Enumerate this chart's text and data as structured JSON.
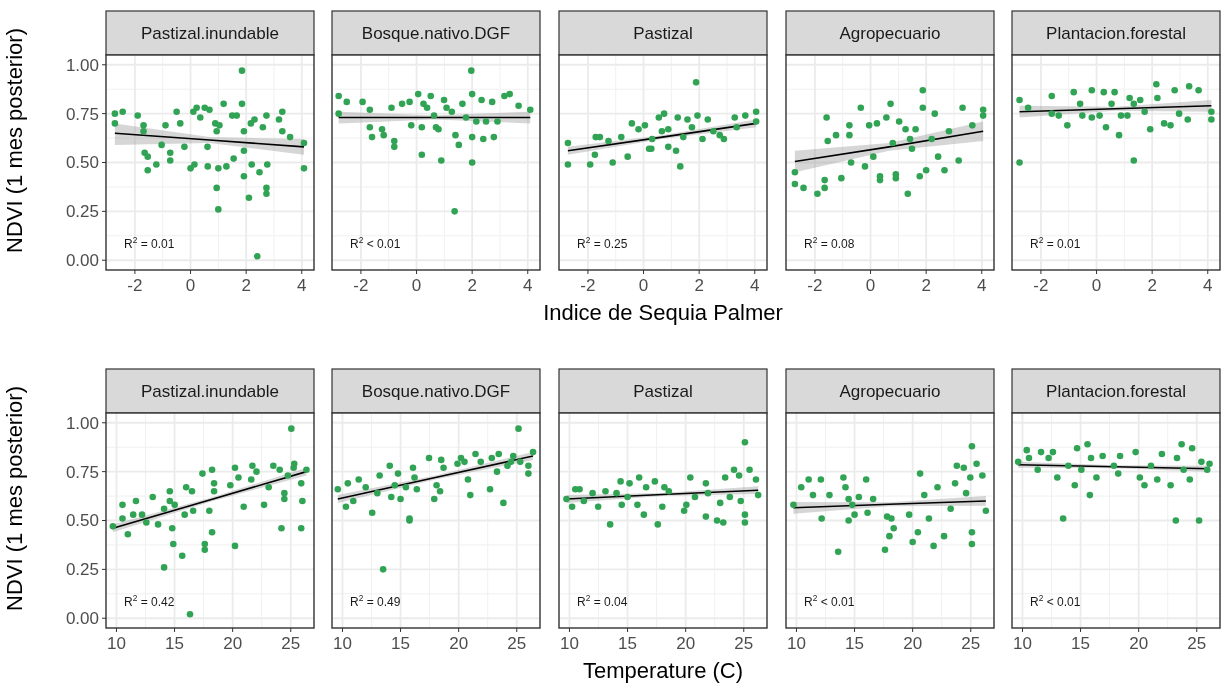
{
  "chart_data": [
    {
      "type": "scatter",
      "title": "Pastizal.inundable",
      "ylabel": "NDVI (1 mes posterior)",
      "xlim": [
        -3.04,
        4.44
      ],
      "xticks": [
        -2,
        0,
        2,
        4
      ],
      "ylim": [
        -0.05,
        1.05
      ],
      "yticks": [
        {
          "value": 0,
          "label": "0.00"
        },
        {
          "value": 0.25,
          "label": "0.25"
        },
        {
          "value": 0.5,
          "label": "0.50"
        },
        {
          "value": 0.75,
          "label": "0.75"
        },
        {
          "value": 1,
          "label": "1.00"
        }
      ],
      "grid": true,
      "annotations": [
        "R$^{2}$ = 0.01"
      ],
      "series": [
        {
          "color": "#31a354",
          "x": [
            -2.72,
            -2.72,
            -2.44,
            -1.9,
            -1.69,
            -1.69,
            -1.65,
            -1.54,
            -1.54,
            -1.23,
            -1.04,
            -0.9,
            -0.73,
            -0.73,
            -0.5,
            -0.37,
            -0.22,
            0,
            0.14,
            0.1,
            0.22,
            0.35,
            0.51,
            0.68,
            0.61,
            0.62,
            0.89,
            0.94,
            0.94,
            1.0,
            1.0,
            1.19,
            1.29,
            1.5,
            1.66,
            1.85,
            1.85,
            1.92,
            1.92,
            1.92,
            2.1,
            2.17,
            2.3,
            2.2,
            2.48,
            2.4,
            2.6,
            2.73,
            2.73,
            2.73,
            2.76,
            3.18,
            3.3,
            3.3,
            3.58,
            4.08,
            4.08,
            1.04,
            1.55
          ],
          "values": [
            0.75,
            0.7,
            0.76,
            0.74,
            0.69,
            0.66,
            0.55,
            0.53,
            0.46,
            0.49,
            0.59,
            0.69,
            0.55,
            0.51,
            0.76,
            0.7,
            0.58,
            0.47,
            0.49,
            0.76,
            0.78,
            0.73,
            0.78,
            0.77,
            0.58,
            0.48,
            0.7,
            0.66,
            0.37,
            0.26,
            0.47,
            0.8,
            0.48,
            0.74,
            0.74,
            0.97,
            0.8,
            0.43,
            0.56,
            0.66,
            0.32,
            0.7,
            0.72,
            0.49,
            0.45,
            0.02,
            0.68,
            0.74,
            0.37,
            0.34,
            0.49,
            0.72,
            0.76,
            0.66,
            0.63,
            0.6,
            0.47,
            0.69,
            0.52
          ]
        },
        {
          "type": "line",
          "color": "#000000",
          "x": [
            -2.72,
            0.68,
            4.08
          ],
          "values": [
            0.65,
            0.615,
            0.58
          ],
          "lower": [
            0.59,
            0.6,
            0.54
          ],
          "upper": [
            0.7,
            0.63,
            0.62
          ]
        }
      ]
    },
    {
      "type": "scatter",
      "title": "Bosque.nativo.DGF",
      "tick_labels": "x",
      "xlim": [
        -3.04,
        4.44
      ],
      "xticks": [
        -2,
        0,
        2,
        4
      ],
      "ylim": [
        -0.05,
        1.05
      ],
      "yticks": [
        0,
        0.25,
        0.5,
        0.75,
        1
      ],
      "grid": true,
      "annotations": [
        "R$^{2}$ < 0.01"
      ],
      "series": [
        {
          "color": "#31a354",
          "x": [
            -2.8,
            -2.8,
            -2.51,
            -1.94,
            -1.68,
            -1.68,
            -1.6,
            -1.24,
            -1.18,
            -0.9,
            -0.8,
            -0.8,
            -0.52,
            -0.25,
            -0.19,
            0.06,
            0.19,
            0.19,
            0.25,
            0.38,
            0.51,
            0.63,
            0.7,
            0.79,
            0.89,
            0.99,
            1.08,
            1.27,
            1.37,
            1.4,
            1.52,
            1.65,
            1.78,
            1.97,
            2.0,
            2.0,
            2.0,
            2.15,
            2.34,
            2.4,
            2.72,
            2.78,
            2.91,
            3.16,
            3.35,
            3.67,
            4.09,
            2.5
          ],
          "values": [
            0.84,
            0.75,
            0.81,
            0.81,
            0.77,
            0.68,
            0.63,
            0.67,
            0.64,
            0.78,
            0.61,
            0.58,
            0.8,
            0.81,
            0.69,
            0.85,
            0.68,
            0.54,
            0.8,
            0.78,
            0.84,
            0.74,
            0.68,
            0.67,
            0.51,
            0.82,
            0.78,
            0.76,
            0.25,
            0.64,
            0.59,
            0.8,
            0.73,
            0.97,
            0.85,
            0.5,
            0.63,
            0.71,
            0.82,
            0.62,
            0.81,
            0.63,
            0.71,
            0.84,
            0.85,
            0.79,
            0.77,
            0.71
          ]
        },
        {
          "type": "line",
          "color": "#000000",
          "x": [
            -2.8,
            0.65,
            4.09
          ],
          "values": [
            0.73,
            0.73,
            0.73
          ],
          "lower": [
            0.7,
            0.72,
            0.7
          ],
          "upper": [
            0.76,
            0.74,
            0.76
          ]
        }
      ]
    },
    {
      "type": "scatter",
      "title": "Pastizal",
      "xlabel": "Indice de Sequia Palmer",
      "tick_labels": "x",
      "xlim": [
        -3.04,
        4.44
      ],
      "xticks": [
        -2,
        0,
        2,
        4
      ],
      "ylim": [
        -0.05,
        1.05
      ],
      "yticks": [
        0,
        0.25,
        0.5,
        0.75,
        1
      ],
      "grid": true,
      "annotations": [
        "R$^{2}$ = 0.25"
      ],
      "series": [
        {
          "color": "#31a354",
          "x": [
            -2.72,
            -2.72,
            -1.92,
            -1.75,
            -1.72,
            -1.57,
            -1.26,
            -1.11,
            -0.8,
            -0.57,
            -0.42,
            -0.18,
            0.05,
            0.2,
            0.31,
            0.55,
            0.74,
            0.89,
            0.89,
            1.17,
            1.23,
            1.32,
            1.43,
            1.58,
            1.74,
            1.89,
            1.94,
            2.12,
            2.31,
            2.51,
            2.74,
            2.89,
            3.28,
            3.35,
            3.66,
            4.05,
            4.05,
            0.28,
            0.66
          ],
          "values": [
            0.6,
            0.49,
            0.49,
            0.54,
            0.63,
            0.63,
            0.61,
            0.5,
            0.63,
            0.53,
            0.7,
            0.67,
            0.69,
            0.57,
            0.62,
            0.73,
            0.75,
            0.67,
            0.58,
            0.56,
            0.73,
            0.48,
            0.63,
            0.72,
            0.68,
            0.91,
            0.74,
            0.62,
            0.72,
            0.66,
            0.64,
            0.62,
            0.73,
            0.68,
            0.74,
            0.76,
            0.71,
            0.57,
            0.66
          ]
        },
        {
          "type": "line",
          "color": "#000000",
          "x": [
            -2.72,
            0.67,
            4.05
          ],
          "values": [
            0.56,
            0.63,
            0.7
          ],
          "lower": [
            0.54,
            0.62,
            0.68
          ],
          "upper": [
            0.58,
            0.64,
            0.72
          ]
        }
      ]
    },
    {
      "type": "scatter",
      "title": "Agropecuario",
      "tick_labels": "x",
      "xlim": [
        -3.04,
        4.44
      ],
      "xticks": [
        -2,
        0,
        2,
        4
      ],
      "ylim": [
        -0.05,
        1.05
      ],
      "yticks": [
        0,
        0.25,
        0.5,
        0.75,
        1
      ],
      "grid": true,
      "annotations": [
        "R$^{2}$ = 0.08"
      ],
      "series": [
        {
          "color": "#31a354",
          "x": [
            -2.72,
            -2.72,
            -2.41,
            -1.91,
            -1.65,
            -1.65,
            -1.58,
            -1.54,
            -1.24,
            -1.05,
            -0.76,
            -0.76,
            -0.7,
            -0.35,
            -0.2,
            -0.05,
            0.1,
            0.23,
            0.34,
            0.34,
            0.57,
            0.72,
            0.8,
            0.91,
            0.91,
            1.03,
            1.26,
            1.34,
            1.49,
            1.62,
            1.77,
            1.88,
            1.88,
            2.0,
            2.2,
            2.31,
            2.43,
            2.66,
            2.82,
            3.17,
            3.31,
            4.05,
            4.05,
            3.66,
            1.42
          ],
          "values": [
            0.45,
            0.39,
            0.37,
            0.34,
            0.41,
            0.37,
            0.73,
            0.61,
            0.64,
            0.42,
            0.69,
            0.64,
            0.5,
            0.78,
            0.48,
            0.69,
            0.53,
            0.7,
            0.43,
            0.41,
            0.73,
            0.8,
            0.6,
            0.44,
            0.42,
            0.71,
            0.67,
            0.34,
            0.57,
            0.67,
            0.43,
            0.87,
            0.78,
            0.46,
            0.62,
            0.75,
            0.53,
            0.46,
            0.66,
            0.51,
            0.78,
            0.77,
            0.74,
            0.69,
            0.62
          ]
        },
        {
          "type": "line",
          "color": "#000000",
          "x": [
            -2.72,
            0.67,
            4.05
          ],
          "values": [
            0.505,
            0.58,
            0.66
          ],
          "lower": [
            0.45,
            0.56,
            0.61
          ],
          "upper": [
            0.56,
            0.6,
            0.71
          ]
        }
      ]
    },
    {
      "type": "scatter",
      "title": "Plantacion.forestal",
      "tick_labels": "x",
      "xlim": [
        -3.04,
        4.44
      ],
      "xticks": [
        -2,
        0,
        2,
        4
      ],
      "ylim": [
        -0.05,
        1.05
      ],
      "yticks": [
        0,
        0.25,
        0.5,
        0.75,
        1
      ],
      "grid": true,
      "annotations": [
        "R$^{2}$ = 0.01"
      ],
      "series": [
        {
          "color": "#31a354",
          "x": [
            -2.77,
            -2.77,
            -2.46,
            -1.61,
            -1.61,
            -1.36,
            -1.05,
            -0.82,
            -0.59,
            -0.17,
            -0.17,
            0.11,
            0.26,
            0.34,
            0.54,
            0.65,
            0.81,
            0.88,
            1.11,
            1.34,
            1.34,
            1.57,
            1.73,
            1.93,
            2.15,
            2.19,
            2.43,
            2.66,
            2.81,
            2.97,
            3.28,
            3.33,
            3.67,
            4.13,
            4.13,
            1.19,
            -0.51
          ],
          "values": [
            0.82,
            0.5,
            0.78,
            0.84,
            0.75,
            0.74,
            0.69,
            0.86,
            0.8,
            0.87,
            0.73,
            0.74,
            0.86,
            0.68,
            0.8,
            0.86,
            0.64,
            0.74,
            0.74,
            0.51,
            0.8,
            0.82,
            0.76,
            0.67,
            0.9,
            0.83,
            0.7,
            0.69,
            0.87,
            0.75,
            0.72,
            0.89,
            0.87,
            0.76,
            0.72,
            0.83,
            0.74
          ]
        },
        {
          "type": "line",
          "color": "#000000",
          "x": [
            -2.77,
            0.68,
            4.13
          ],
          "values": [
            0.76,
            0.775,
            0.79
          ],
          "lower": [
            0.73,
            0.765,
            0.76
          ],
          "upper": [
            0.79,
            0.785,
            0.82
          ]
        }
      ]
    },
    {
      "type": "scatter",
      "title": "Pastizal.inundable",
      "ylabel": "NDVI (1 mes posterior)",
      "xlim": [
        9.1,
        27.0
      ],
      "xticks": [
        10,
        15,
        20,
        25
      ],
      "ylim": [
        -0.05,
        1.05
      ],
      "yticks": [
        {
          "value": 0,
          "label": "0.00"
        },
        {
          "value": 0.25,
          "label": "0.25"
        },
        {
          "value": 0.5,
          "label": "0.50"
        },
        {
          "value": 0.75,
          "label": "0.75"
        },
        {
          "value": 1,
          "label": "1.00"
        }
      ],
      "grid": true,
      "annotations": [
        "R$^{2}$ = 0.42"
      ],
      "series": [
        {
          "color": "#31a354",
          "x": [
            9.69,
            10.52,
            10.52,
            10.98,
            11.44,
            11.68,
            12.2,
            12.57,
            13.12,
            13.58,
            14.1,
            14.1,
            14.59,
            14.59,
            14.8,
            14.89,
            15.01,
            15.66,
            15.87,
            16.0,
            16.33,
            16.5,
            16.6,
            17.4,
            17.6,
            17.6,
            17.99,
            18.23,
            18.23,
            18.4,
            18.4,
            19.8,
            20.2,
            20.2,
            20.5,
            20.95,
            21.6,
            21.7,
            22.05,
            22.7,
            23.1,
            23.5,
            24.05,
            24.2,
            24.45,
            24.45,
            24.75,
            25.05,
            25.3,
            25.9,
            25.9,
            26.0,
            26.35,
            25.25
          ],
          "values": [
            0.47,
            0.58,
            0.51,
            0.43,
            0.53,
            0.6,
            0.53,
            0.49,
            0.62,
            0.48,
            0.56,
            0.26,
            0.65,
            0.6,
            0.46,
            0.38,
            0.58,
            0.32,
            0.53,
            0.67,
            0.02,
            0.65,
            0.55,
            0.74,
            0.35,
            0.38,
            0.55,
            0.76,
            0.44,
            0.69,
            0.65,
            0.68,
            0.77,
            0.37,
            0.72,
            0.57,
            0.71,
            0.78,
            0.75,
            0.58,
            0.67,
            0.78,
            0.76,
            0.46,
            0.61,
            0.64,
            0.73,
            0.97,
            0.79,
            0.69,
            0.46,
            0.6,
            0.76,
            0.77
          ]
        },
        {
          "type": "line",
          "color": "#000000",
          "x": [
            9.69,
            18.02,
            26.35
          ],
          "values": [
            0.46,
            0.605,
            0.75
          ],
          "lower": [
            0.44,
            0.595,
            0.73
          ],
          "upper": [
            0.48,
            0.615,
            0.77
          ]
        }
      ]
    },
    {
      "type": "scatter",
      "title": "Bosque.nativo.DGF",
      "tick_labels": "x",
      "xlim": [
        9.1,
        27.0
      ],
      "xticks": [
        10,
        15,
        20,
        25
      ],
      "ylim": [
        -0.05,
        1.05
      ],
      "yticks": [
        0,
        0.25,
        0.5,
        0.75,
        1
      ],
      "grid": true,
      "annotations": [
        "R$^{2}$ = 0.49"
      ],
      "series": [
        {
          "color": "#31a354",
          "x": [
            9.6,
            10.3,
            10.46,
            10.93,
            11.4,
            12.0,
            12.56,
            13.0,
            13.2,
            13.5,
            14.07,
            14.2,
            14.5,
            14.78,
            15.0,
            15.46,
            15.77,
            15.77,
            16.07,
            16.2,
            16.4,
            17.45,
            17.9,
            18.1,
            18.4,
            18.5,
            18.7,
            19.9,
            20.2,
            20.5,
            20.8,
            21.0,
            21.45,
            21.9,
            22.7,
            22.85,
            23.3,
            23.45,
            23.85,
            24.2,
            24.5,
            24.7,
            25.15,
            25.3,
            26.0,
            26.0,
            26.4
          ],
          "values": [
            0.66,
            0.57,
            0.69,
            0.6,
            0.71,
            0.67,
            0.54,
            0.64,
            0.73,
            0.25,
            0.78,
            0.62,
            0.68,
            0.74,
            0.61,
            0.67,
            0.5,
            0.51,
            0.77,
            0.72,
            0.66,
            0.82,
            0.61,
            0.68,
            0.65,
            0.81,
            0.77,
            0.79,
            0.82,
            0.8,
            0.71,
            0.63,
            0.84,
            0.8,
            0.66,
            0.82,
            0.75,
            0.84,
            0.59,
            0.78,
            0.8,
            0.83,
            0.97,
            0.8,
            0.74,
            0.78,
            0.85
          ]
        },
        {
          "type": "line",
          "color": "#000000",
          "x": [
            9.6,
            18.0,
            26.4
          ],
          "values": [
            0.61,
            0.72,
            0.83
          ],
          "lower": [
            0.59,
            0.71,
            0.81
          ],
          "upper": [
            0.63,
            0.73,
            0.85
          ]
        }
      ]
    },
    {
      "type": "scatter",
      "title": "Pastizal",
      "xlabel": "Temperature (C)",
      "tick_labels": "x",
      "xlim": [
        9.1,
        27.0
      ],
      "xticks": [
        10,
        15,
        20,
        25
      ],
      "ylim": [
        -0.05,
        1.05
      ],
      "yticks": [
        0,
        0.25,
        0.5,
        0.75,
        1
      ],
      "grid": true,
      "annotations": [
        "R$^{2}$ = 0.04"
      ],
      "series": [
        {
          "color": "#31a354",
          "x": [
            9.74,
            10.23,
            10.5,
            10.87,
            11.24,
            11.99,
            12.47,
            13.1,
            13.5,
            14.05,
            14.4,
            14.5,
            15.0,
            15.17,
            15.85,
            16.0,
            16.4,
            16.6,
            17.35,
            17.6,
            17.99,
            18.17,
            18.55,
            19.87,
            20.06,
            20.4,
            20.8,
            21.74,
            21.74,
            21.92,
            22.7,
            22.97,
            23.24,
            23.4,
            23.8,
            24.16,
            24.6,
            24.74,
            25.1,
            25.1,
            25.1,
            25.5,
            26.05,
            26.24
          ],
          "values": [
            0.61,
            0.57,
            0.66,
            0.66,
            0.6,
            0.64,
            0.57,
            0.65,
            0.48,
            0.64,
            0.7,
            0.58,
            0.62,
            0.69,
            0.58,
            0.72,
            0.53,
            0.67,
            0.7,
            0.48,
            0.57,
            0.67,
            0.65,
            0.55,
            0.58,
            0.72,
            0.62,
            0.52,
            0.69,
            0.64,
            0.5,
            0.59,
            0.49,
            0.72,
            0.62,
            0.76,
            0.73,
            0.6,
            0.9,
            0.49,
            0.53,
            0.76,
            0.71,
            0.63
          ]
        },
        {
          "type": "line",
          "color": "#000000",
          "x": [
            9.74,
            17.99,
            26.24
          ],
          "values": [
            0.61,
            0.633,
            0.655
          ],
          "lower": [
            0.59,
            0.625,
            0.635
          ],
          "upper": [
            0.63,
            0.641,
            0.675
          ]
        }
      ]
    },
    {
      "type": "scatter",
      "title": "Agropecuario",
      "tick_labels": "x",
      "xlim": [
        9.1,
        27.0
      ],
      "xticks": [
        10,
        15,
        20,
        25
      ],
      "ylim": [
        -0.05,
        1.05
      ],
      "yticks": [
        0,
        0.25,
        0.5,
        0.75,
        1
      ],
      "grid": true,
      "annotations": [
        "R$^{2}$ < 0.01"
      ],
      "series": [
        {
          "color": "#31a354",
          "x": [
            9.74,
            10.41,
            11.05,
            11.42,
            12.1,
            12.17,
            12.84,
            13.59,
            14.04,
            14.22,
            14.49,
            14.49,
            14.8,
            15.0,
            15.37,
            16.0,
            16.12,
            16.6,
            17.62,
            17.8,
            18.17,
            18.0,
            18.37,
            19.7,
            20.0,
            20.45,
            20.64,
            21.0,
            21.4,
            21.8,
            22.14,
            22.7,
            23.27,
            23.65,
            23.8,
            24.4,
            24.96,
            25.1,
            25.1,
            25.1,
            25.5,
            26.0,
            26.3,
            24.6
          ],
          "values": [
            0.58,
            0.67,
            0.71,
            0.63,
            0.71,
            0.51,
            0.63,
            0.34,
            0.72,
            0.67,
            0.61,
            0.5,
            0.58,
            0.53,
            0.62,
            0.71,
            0.54,
            0.61,
            0.35,
            0.52,
            0.51,
            0.42,
            0.46,
            0.53,
            0.39,
            0.44,
            0.74,
            0.63,
            0.51,
            0.37,
            0.67,
            0.42,
            0.56,
            0.69,
            0.78,
            0.77,
            0.72,
            0.88,
            0.38,
            0.44,
            0.79,
            0.73,
            0.55,
            0.64
          ]
        },
        {
          "type": "line",
          "color": "#000000",
          "x": [
            9.74,
            18.02,
            26.3
          ],
          "values": [
            0.565,
            0.583,
            0.6
          ],
          "lower": [
            0.535,
            0.573,
            0.575
          ],
          "upper": [
            0.595,
            0.593,
            0.625
          ]
        }
      ]
    },
    {
      "type": "scatter",
      "title": "Plantacion.forestal",
      "tick_labels": "x",
      "xlim": [
        9.1,
        27.0
      ],
      "xticks": [
        10,
        15,
        20,
        25
      ],
      "ylim": [
        -0.05,
        1.05
      ],
      "yticks": [
        0,
        0.25,
        0.5,
        0.75,
        1
      ],
      "grid": true,
      "annotations": [
        "R$^{2}$ < 0.01"
      ],
      "series": [
        {
          "color": "#31a354",
          "x": [
            9.63,
            10.37,
            10.56,
            11.31,
            11.6,
            12.25,
            12.62,
            13.0,
            13.5,
            13.95,
            14.5,
            14.7,
            15.07,
            15.6,
            15.8,
            15.9,
            16.37,
            16.9,
            17.87,
            18.24,
            18.4,
            19.74,
            20.1,
            20.5,
            21.06,
            21.6,
            22.0,
            22.75,
            23.2,
            23.7,
            23.87,
            24.4,
            24.6,
            25.2,
            25.4,
            25.9,
            26.1,
            23.3
          ],
          "values": [
            0.8,
            0.86,
            0.82,
            0.76,
            0.85,
            0.82,
            0.85,
            0.72,
            0.51,
            0.78,
            0.68,
            0.87,
            0.76,
            0.89,
            0.63,
            0.82,
            0.72,
            0.83,
            0.78,
            0.74,
            0.83,
            0.85,
            0.72,
            0.68,
            0.78,
            0.71,
            0.84,
            0.68,
            0.5,
            0.89,
            0.76,
            0.71,
            0.87,
            0.5,
            0.8,
            0.76,
            0.79,
            0.82
          ]
        },
        {
          "type": "line",
          "color": "#000000",
          "x": [
            9.63,
            18.0,
            26.1
          ],
          "values": [
            0.785,
            0.775,
            0.765
          ],
          "lower": [
            0.77,
            0.767,
            0.75
          ],
          "upper": [
            0.8,
            0.783,
            0.78
          ]
        }
      ]
    }
  ]
}
